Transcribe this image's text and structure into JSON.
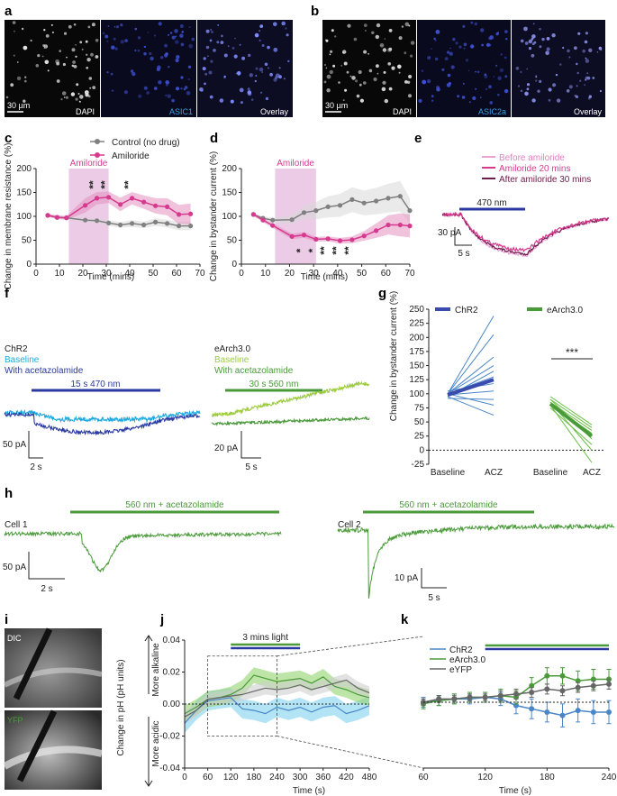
{
  "panel_letters": {
    "a": "a",
    "b": "b",
    "c": "c",
    "d": "d",
    "e": "e",
    "f": "f",
    "g": "g",
    "h": "h",
    "i": "i",
    "j": "j",
    "k": "k"
  },
  "micrographs": {
    "a": {
      "scale": "30 µm",
      "tiles": [
        "DAPI",
        "ASIC1",
        "Overlay"
      ]
    },
    "b": {
      "scale": "30 µm",
      "tiles": [
        "DAPI",
        "ASIC2a",
        "Overlay"
      ]
    },
    "i": {
      "tiles": [
        "DIC",
        "YFP"
      ]
    }
  },
  "colors": {
    "amiloride": "#d63a8e",
    "control": "#808080",
    "chr2": "#3a4bb0",
    "chr2_light": "#1fa8df",
    "earch": "#4a9a3a",
    "earch_light": "#9ccc3a",
    "eyfp": "#666666",
    "asic": "#3aa0e0"
  },
  "panel_c": {
    "chart_data": {
      "type": "line",
      "ylabel": "Change in membrane resistance (%)",
      "xlabel": "Time (mins)",
      "xlim": [
        0,
        70
      ],
      "ylim": [
        0,
        200
      ],
      "xticks": [
        "0",
        "10",
        "20",
        "30",
        "40",
        "50",
        "60",
        "70"
      ],
      "yticks": [
        "0",
        "50",
        "100",
        "150",
        "200"
      ],
      "shaded_interval": {
        "label": "Amiloride",
        "x": [
          14,
          31
        ]
      },
      "legend": [
        "Control (no drug)",
        "Amiloride"
      ],
      "series": [
        {
          "name": "Control (no drug)",
          "x": [
            5,
            9,
            13,
            21,
            26,
            31,
            36,
            41,
            46,
            51,
            56,
            61,
            66
          ],
          "values": [
            102,
            98,
            97,
            92,
            91,
            86,
            82,
            85,
            82,
            88,
            85,
            80,
            80
          ],
          "err": [
            3,
            3,
            3,
            4,
            5,
            6,
            6,
            7,
            7,
            8,
            8,
            9,
            9
          ]
        },
        {
          "name": "Amiloride",
          "x": [
            5,
            9,
            13,
            21,
            26,
            31,
            36,
            41,
            46,
            51,
            56,
            61,
            66
          ],
          "values": [
            102,
            98,
            97,
            123,
            138,
            140,
            125,
            138,
            130,
            122,
            120,
            104,
            105
          ],
          "err": [
            3,
            4,
            4,
            15,
            13,
            12,
            14,
            13,
            14,
            16,
            18,
            20,
            22
          ]
        }
      ],
      "annotations": [
        {
          "x": 26,
          "text": "**"
        },
        {
          "x": 31,
          "text": "**"
        },
        {
          "x": 41,
          "text": "**"
        }
      ]
    }
  },
  "panel_d": {
    "chart_data": {
      "type": "line",
      "ylabel": "Change in bystander current (%)",
      "xlabel": "Time (mins)",
      "xlim": [
        0,
        70
      ],
      "ylim": [
        0,
        200
      ],
      "xticks": [
        "0",
        "10",
        "20",
        "30",
        "40",
        "50",
        "60",
        "70"
      ],
      "yticks": [
        "0",
        "50",
        "100",
        "150",
        "200"
      ],
      "shaded_interval": {
        "label": "Amiloride",
        "x": [
          14,
          31
        ]
      },
      "series": [
        {
          "name": "Control",
          "x": [
            5,
            9,
            13,
            21,
            26,
            31,
            36,
            41,
            46,
            51,
            56,
            61,
            66,
            70
          ],
          "values": [
            104,
            96,
            92,
            93,
            108,
            112,
            120,
            123,
            135,
            128,
            132,
            138,
            142,
            112
          ],
          "err": [
            3,
            4,
            5,
            10,
            14,
            18,
            22,
            24,
            26,
            26,
            28,
            30,
            32,
            26
          ]
        },
        {
          "name": "Amiloride",
          "x": [
            5,
            9,
            13,
            21,
            26,
            31,
            36,
            41,
            46,
            51,
            56,
            61,
            66,
            70
          ],
          "values": [
            104,
            92,
            81,
            58,
            61,
            52,
            53,
            49,
            51,
            59,
            70,
            82,
            82,
            80
          ],
          "err": [
            3,
            4,
            5,
            6,
            6,
            5,
            5,
            6,
            7,
            10,
            15,
            20,
            24,
            24
          ]
        }
      ],
      "annotations": [
        {
          "x": 26,
          "text": "*"
        },
        {
          "x": 31,
          "text": "*"
        },
        {
          "x": 36,
          "text": "**"
        },
        {
          "x": 41,
          "text": "**"
        },
        {
          "x": 46,
          "text": "**"
        }
      ]
    }
  },
  "panel_e": {
    "legend": [
      "Before amiloride",
      "Amiloride 20 mins",
      "After amiloride 30 mins"
    ],
    "stim": "470 nm",
    "scale_y": "30 pA",
    "scale_x": "5 s"
  },
  "panel_f": {
    "chr2": {
      "title": "ChR2",
      "legend": [
        "Baseline",
        "With acetazolamide"
      ],
      "stim": "15 s 470 nm",
      "scale_y": "50 pA",
      "scale_x": "2 s"
    },
    "earch": {
      "title": "eArch3.0",
      "legend": [
        "Baseline",
        "With acetazolamide"
      ],
      "stim": "30 s 560 nm",
      "scale_y": "20 pA",
      "scale_x": "5 s"
    }
  },
  "panel_g": {
    "chart_data": {
      "type": "line",
      "ylabel": "Change in bystander current (%)",
      "ylim": [
        -25,
        250
      ],
      "yticks": [
        "-25",
        "0",
        "25",
        "50",
        "75",
        "100",
        "125",
        "150",
        "175",
        "200",
        "225",
        "250"
      ],
      "categories": [
        "Baseline",
        "ACZ",
        "Baseline",
        "ACZ"
      ],
      "legend": [
        "ChR2",
        "eArch3.0"
      ],
      "chr2_pairs": [
        [
          100,
          238
        ],
        [
          100,
          205
        ],
        [
          100,
          165
        ],
        [
          100,
          150
        ],
        [
          95,
          140
        ],
        [
          100,
          130
        ],
        [
          105,
          118
        ],
        [
          98,
          105
        ],
        [
          92,
          90
        ],
        [
          100,
          80
        ],
        [
          95,
          62
        ]
      ],
      "chr2_mean": [
        98,
        125
      ],
      "earch_pairs": [
        [
          95,
          45
        ],
        [
          90,
          40
        ],
        [
          85,
          35
        ],
        [
          80,
          30
        ],
        [
          90,
          20
        ],
        [
          75,
          10
        ],
        [
          85,
          0
        ],
        [
          80,
          -22
        ]
      ],
      "earch_mean": [
        82,
        25
      ],
      "annotation": "***"
    }
  },
  "panel_h": {
    "cell1": {
      "title": "Cell 1",
      "stim": "560 nm + acetazolamide",
      "scale_y": "50 pA",
      "scale_x": "2 s"
    },
    "cell2": {
      "title": "Cell 2",
      "stim": "560 nm + acetazolamide",
      "scale_y": "10 pA",
      "scale_x": "5 s"
    }
  },
  "panel_j": {
    "chart_data": {
      "type": "line",
      "ylabel": "Change in pH (pH units)",
      "xlabel": "Time (s)",
      "xlim": [
        0,
        480
      ],
      "ylim": [
        -0.04,
        0.04
      ],
      "xticks": [
        "0",
        "60",
        "120",
        "180",
        "240",
        "300",
        "360",
        "420",
        "480"
      ],
      "yticks": [
        "-0.04",
        "-0.02",
        "0.00",
        "0.02",
        "0.04"
      ],
      "direction_labels": [
        "More alkaline",
        "More acidic"
      ],
      "light_bar": "3 mins light",
      "light_interval": [
        120,
        300
      ],
      "series": [
        {
          "name": "ChR2",
          "x": [
            0,
            30,
            60,
            90,
            120,
            150,
            180,
            210,
            240,
            270,
            300,
            330,
            360,
            390,
            420,
            450,
            480
          ],
          "values": [
            -0.012,
            -0.004,
            0.002,
            0.003,
            0.004,
            -0.003,
            -0.004,
            -0.006,
            -0.002,
            -0.004,
            -0.002,
            -0.005,
            -0.002,
            -0.001,
            -0.006,
            -0.004,
            -0.001
          ]
        },
        {
          "name": "eArch3.0",
          "x": [
            0,
            30,
            60,
            90,
            120,
            150,
            180,
            210,
            240,
            270,
            300,
            330,
            360,
            390,
            420,
            450,
            480
          ],
          "values": [
            -0.006,
            -0.002,
            0.003,
            0.004,
            0.006,
            0.01,
            0.018,
            0.016,
            0.014,
            0.015,
            0.016,
            0.013,
            0.017,
            0.011,
            0.009,
            0.006,
            0.004
          ]
        },
        {
          "name": "eYFP",
          "x": [
            0,
            30,
            60,
            90,
            120,
            150,
            180,
            210,
            240,
            270,
            300,
            330,
            360,
            390,
            420,
            450,
            480
          ],
          "values": [
            -0.008,
            -0.004,
            0.003,
            0.004,
            0.005,
            0.006,
            0.008,
            0.01,
            0.009,
            0.01,
            0.012,
            0.009,
            0.011,
            0.013,
            0.015,
            0.01,
            0.007
          ]
        }
      ]
    }
  },
  "panel_k": {
    "chart_data": {
      "type": "line",
      "xlabel": "Time (s)",
      "xlim": [
        60,
        240
      ],
      "ylim": [
        -0.04,
        0.04
      ],
      "xticks": [
        "60",
        "120",
        "180",
        "240"
      ],
      "legend": [
        "ChR2",
        "eArch3.0",
        "eYFP"
      ],
      "series": [
        {
          "name": "ChR2",
          "x": [
            60,
            75,
            90,
            105,
            120,
            135,
            150,
            165,
            180,
            195,
            210,
            225,
            240
          ],
          "values": [
            0.0,
            0.001,
            0.002,
            0.002,
            0.003,
            0.002,
            -0.002,
            -0.004,
            -0.006,
            -0.008,
            -0.005,
            -0.006,
            -0.006
          ],
          "err": [
            0.003,
            0.003,
            0.003,
            0.003,
            0.003,
            0.004,
            0.005,
            0.006,
            0.006,
            0.007,
            0.007,
            0.007,
            0.007
          ]
        },
        {
          "name": "eArch3.0",
          "x": [
            60,
            75,
            90,
            105,
            120,
            135,
            150,
            165,
            180,
            195,
            210,
            225,
            240
          ],
          "values": [
            -0.001,
            0.001,
            0.002,
            0.003,
            0.003,
            0.004,
            0.003,
            0.01,
            0.016,
            0.016,
            0.013,
            0.014,
            0.014
          ],
          "err": [
            0.003,
            0.003,
            0.003,
            0.003,
            0.003,
            0.004,
            0.004,
            0.005,
            0.005,
            0.005,
            0.006,
            0.006,
            0.006
          ]
        },
        {
          "name": "eYFP",
          "x": [
            60,
            75,
            90,
            105,
            120,
            135,
            150,
            165,
            180,
            195,
            210,
            225,
            240
          ],
          "values": [
            0.0,
            0.002,
            0.002,
            0.003,
            0.003,
            0.004,
            0.005,
            0.006,
            0.008,
            0.007,
            0.009,
            0.01,
            0.011
          ],
          "err": [
            0.002,
            0.002,
            0.002,
            0.002,
            0.002,
            0.003,
            0.003,
            0.003,
            0.003,
            0.003,
            0.003,
            0.003,
            0.003
          ]
        }
      ]
    }
  }
}
